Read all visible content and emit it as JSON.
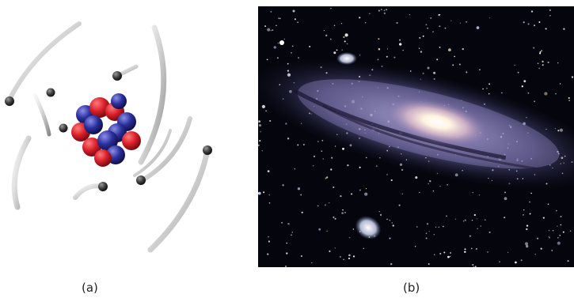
{
  "figure": {
    "panels": [
      {
        "id": "a",
        "label": "(a)",
        "illustration": "atom-model"
      },
      {
        "id": "b",
        "label": "(b)",
        "illustration": "spiral-galaxy-photo"
      }
    ]
  },
  "colors": {
    "proton": "#d81f2a",
    "neutron": "#2b2f9c",
    "electron": "#3a3a3a",
    "trail": "#b5b5b5",
    "space": "#05060d",
    "galaxy_core": "#fff5ea",
    "galaxy_arm": "#8f86c8"
  }
}
